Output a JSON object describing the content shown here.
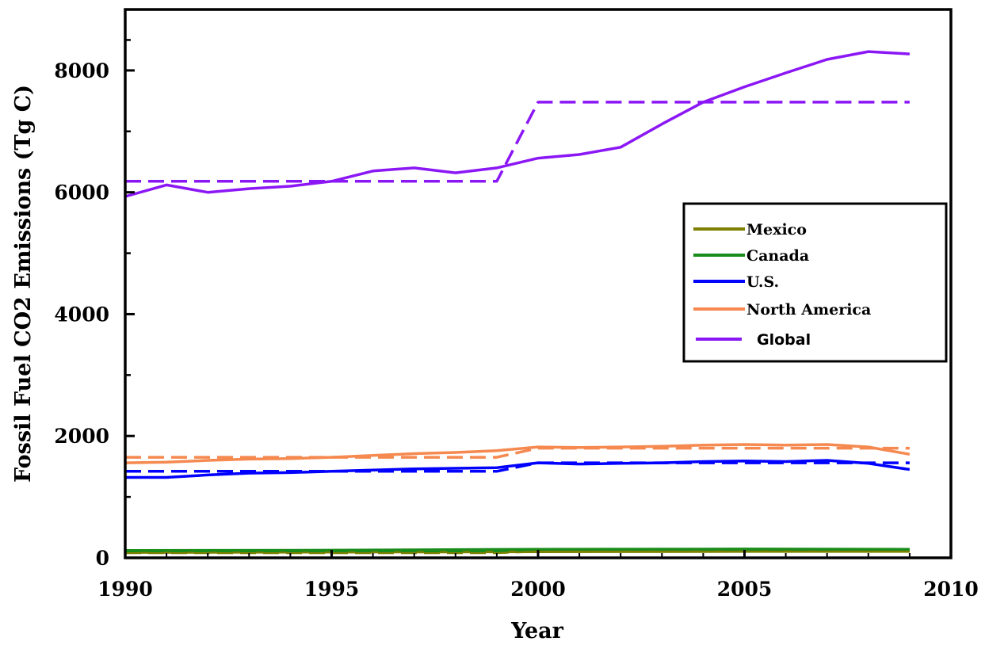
{
  "chart_data": {
    "type": "line",
    "title": "",
    "xlabel": "Year",
    "ylabel": "Fossil Fuel CO2 Emissions (Tg C)",
    "xlim": [
      1990,
      2010
    ],
    "ylim": [
      0,
      9000
    ],
    "x_ticks": [
      1990,
      1995,
      2000,
      2005,
      2010
    ],
    "y_ticks": [
      0,
      2000,
      4000,
      6000,
      8000
    ],
    "grid": false,
    "legend_position": "right",
    "series": [
      {
        "name": "Mexico",
        "color": "#808000",
        "style": "solid",
        "x": [
          1990,
          1995,
          2000,
          2005,
          2009
        ],
        "y": [
          90,
          95,
          100,
          105,
          105
        ]
      },
      {
        "name": "Mexico",
        "color": "#808000",
        "style": "dashed",
        "x": [
          1990,
          1999,
          2000,
          2009
        ],
        "y": [
          85,
          85,
          110,
          110
        ]
      },
      {
        "name": "Canada",
        "color": "#1a8c1a",
        "style": "solid",
        "x": [
          1990,
          1995,
          2000,
          2005,
          2009
        ],
        "y": [
          120,
          125,
          140,
          145,
          140
        ]
      },
      {
        "name": "Canada",
        "color": "#1a8c1a",
        "style": "dashed",
        "x": [
          1990,
          1999,
          2000,
          2009
        ],
        "y": [
          115,
          115,
          140,
          140
        ]
      },
      {
        "name": "U.S.",
        "color": "#0000ff",
        "style": "solid",
        "x": [
          1990,
          1991,
          1992,
          1993,
          1994,
          1995,
          1996,
          1997,
          1998,
          1999,
          2000,
          2001,
          2002,
          2003,
          2004,
          2005,
          2006,
          2007,
          2008,
          2009
        ],
        "y": [
          1320,
          1320,
          1360,
          1390,
          1400,
          1420,
          1440,
          1460,
          1470,
          1480,
          1560,
          1540,
          1550,
          1560,
          1580,
          1590,
          1580,
          1600,
          1550,
          1450
        ]
      },
      {
        "name": "U.S.",
        "color": "#0000ff",
        "style": "dashed",
        "x": [
          1990,
          1999,
          2000,
          2009
        ],
        "y": [
          1420,
          1420,
          1560,
          1560
        ]
      },
      {
        "name": "North America",
        "color": "#f5894f",
        "style": "solid",
        "x": [
          1990,
          1991,
          1992,
          1993,
          1994,
          1995,
          1996,
          1997,
          1998,
          1999,
          2000,
          2001,
          2002,
          2003,
          2004,
          2005,
          2006,
          2007,
          2008,
          2009
        ],
        "y": [
          1560,
          1570,
          1600,
          1620,
          1630,
          1650,
          1680,
          1710,
          1730,
          1760,
          1820,
          1810,
          1820,
          1830,
          1850,
          1860,
          1850,
          1860,
          1820,
          1700
        ]
      },
      {
        "name": "North America",
        "color": "#f5894f",
        "style": "dashed",
        "x": [
          1990,
          1999,
          2000,
          2009
        ],
        "y": [
          1650,
          1650,
          1800,
          1800
        ]
      },
      {
        "name": "Global",
        "color": "#8b17f5",
        "style": "solid",
        "x": [
          1990,
          1991,
          1992,
          1993,
          1994,
          1995,
          1996,
          1997,
          1998,
          1999,
          2000,
          2001,
          2002,
          2003,
          2004,
          2005,
          2006,
          2007,
          2008,
          2009
        ],
        "y": [
          5930,
          6120,
          6000,
          6060,
          6100,
          6180,
          6350,
          6400,
          6320,
          6400,
          6560,
          6620,
          6740,
          7120,
          7480,
          7730,
          7960,
          8180,
          8310,
          8270
        ]
      },
      {
        "name": "Global",
        "color": "#8b17f5",
        "style": "dashed",
        "x": [
          1990,
          1999,
          2000,
          2009
        ],
        "y": [
          6180,
          6180,
          7480,
          7480
        ]
      }
    ],
    "legend": [
      {
        "label": "Mexico",
        "color": "#808000"
      },
      {
        "label": "Canada",
        "color": "#1a8c1a"
      },
      {
        "label": "U.S.",
        "color": "#0000ff"
      },
      {
        "label": "North America",
        "color": "#f5894f"
      },
      {
        "label": "Global",
        "color": "#8b17f5"
      }
    ]
  }
}
